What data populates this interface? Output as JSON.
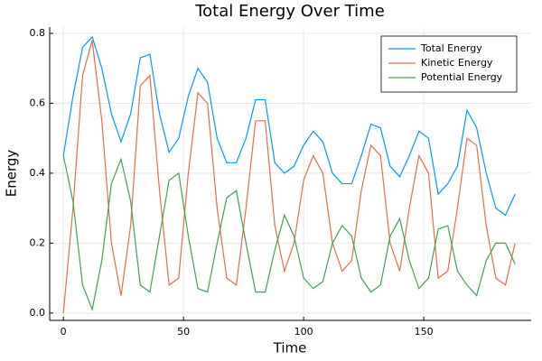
{
  "chart_data": {
    "type": "line",
    "title": "Total Energy Over Time",
    "x_label": "Time",
    "y_label": "Energy",
    "x": [
      0,
      4,
      8,
      12,
      16,
      20,
      24,
      28,
      32,
      36,
      40,
      44,
      48,
      52,
      56,
      60,
      64,
      68,
      72,
      76,
      80,
      84,
      88,
      92,
      96,
      100,
      104,
      108,
      112,
      116,
      120,
      124,
      128,
      132,
      136,
      140,
      144,
      148,
      152,
      156,
      160,
      164,
      168,
      172,
      176,
      180,
      184,
      188
    ],
    "series": [
      {
        "name": "Total Energy",
        "color": "#009af9",
        "values": [
          0.45,
          0.62,
          0.76,
          0.79,
          0.7,
          0.57,
          0.49,
          0.57,
          0.73,
          0.74,
          0.57,
          0.46,
          0.5,
          0.62,
          0.7,
          0.66,
          0.5,
          0.43,
          0.43,
          0.5,
          0.61,
          0.61,
          0.43,
          0.4,
          0.42,
          0.48,
          0.52,
          0.49,
          0.4,
          0.37,
          0.37,
          0.45,
          0.54,
          0.53,
          0.42,
          0.39,
          0.45,
          0.52,
          0.5,
          0.34,
          0.37,
          0.42,
          0.58,
          0.53,
          0.4,
          0.3,
          0.28,
          0.34
        ]
      },
      {
        "name": "Kinetic Energy",
        "color": "#e26f46",
        "values": [
          0.0,
          0.3,
          0.68,
          0.78,
          0.55,
          0.2,
          0.05,
          0.25,
          0.65,
          0.68,
          0.35,
          0.08,
          0.1,
          0.4,
          0.63,
          0.6,
          0.3,
          0.1,
          0.08,
          0.3,
          0.55,
          0.55,
          0.25,
          0.12,
          0.2,
          0.38,
          0.45,
          0.4,
          0.2,
          0.12,
          0.15,
          0.35,
          0.48,
          0.45,
          0.2,
          0.12,
          0.3,
          0.45,
          0.4,
          0.1,
          0.12,
          0.3,
          0.5,
          0.48,
          0.25,
          0.1,
          0.08,
          0.2
        ]
      },
      {
        "name": "Potential Energy",
        "color": "#3da44d",
        "values": [
          0.45,
          0.32,
          0.08,
          0.01,
          0.15,
          0.37,
          0.44,
          0.32,
          0.08,
          0.06,
          0.22,
          0.38,
          0.4,
          0.22,
          0.07,
          0.06,
          0.2,
          0.33,
          0.35,
          0.2,
          0.06,
          0.06,
          0.18,
          0.28,
          0.22,
          0.1,
          0.07,
          0.09,
          0.2,
          0.25,
          0.22,
          0.1,
          0.06,
          0.08,
          0.22,
          0.27,
          0.15,
          0.07,
          0.1,
          0.24,
          0.25,
          0.12,
          0.08,
          0.05,
          0.15,
          0.2,
          0.2,
          0.14
        ]
      }
    ],
    "xlim": [
      -5.7,
      194.7
    ],
    "ylim": [
      -0.021,
      0.818
    ],
    "xticks": [
      0,
      50,
      100,
      150
    ],
    "yticks": [
      {
        "value": 0,
        "label": "0.0"
      },
      0.2,
      0.4,
      0.6,
      0.8
    ],
    "grid": true,
    "legend": "top-right"
  }
}
